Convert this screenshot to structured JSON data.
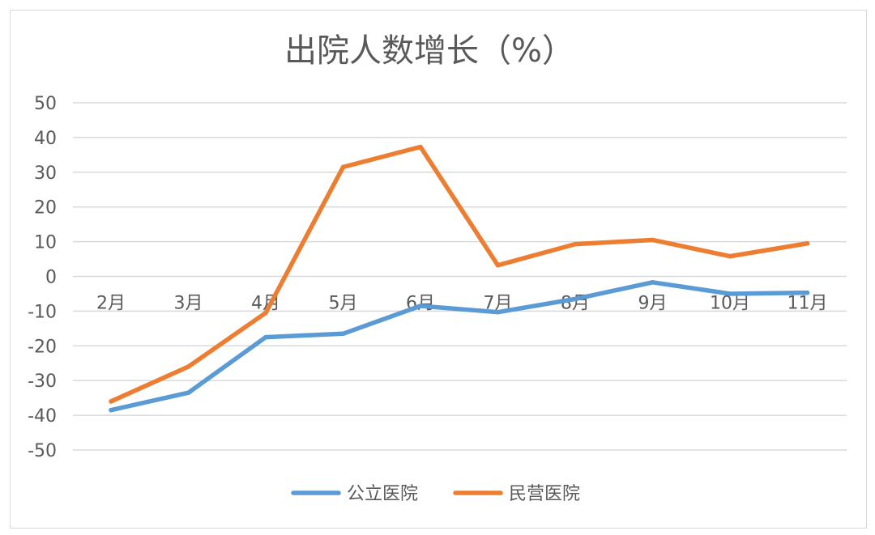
{
  "chart_data": {
    "type": "line",
    "title": "出院人数增长（%）",
    "categories": [
      "2月",
      "3月",
      "4月",
      "5月",
      "6月",
      "7月",
      "8月",
      "9月",
      "10月",
      "11月"
    ],
    "ylim": [
      -50,
      50
    ],
    "y_ticks": [
      50,
      40,
      30,
      20,
      10,
      0,
      -10,
      -20,
      -30,
      -40,
      -50
    ],
    "grid": true,
    "legend_position": "bottom",
    "series": [
      {
        "name": "公立医院",
        "color": "#5b9bd5",
        "values": [
          -38.5,
          -33.5,
          -17.5,
          -16.5,
          -8.5,
          -10.3,
          -6.5,
          -1.7,
          -5.0,
          -4.7
        ]
      },
      {
        "name": "民营医院",
        "color": "#ed7d31",
        "values": [
          -36.0,
          -26.0,
          -10.5,
          31.5,
          37.3,
          3.2,
          9.3,
          10.5,
          5.8,
          9.5
        ]
      }
    ]
  }
}
